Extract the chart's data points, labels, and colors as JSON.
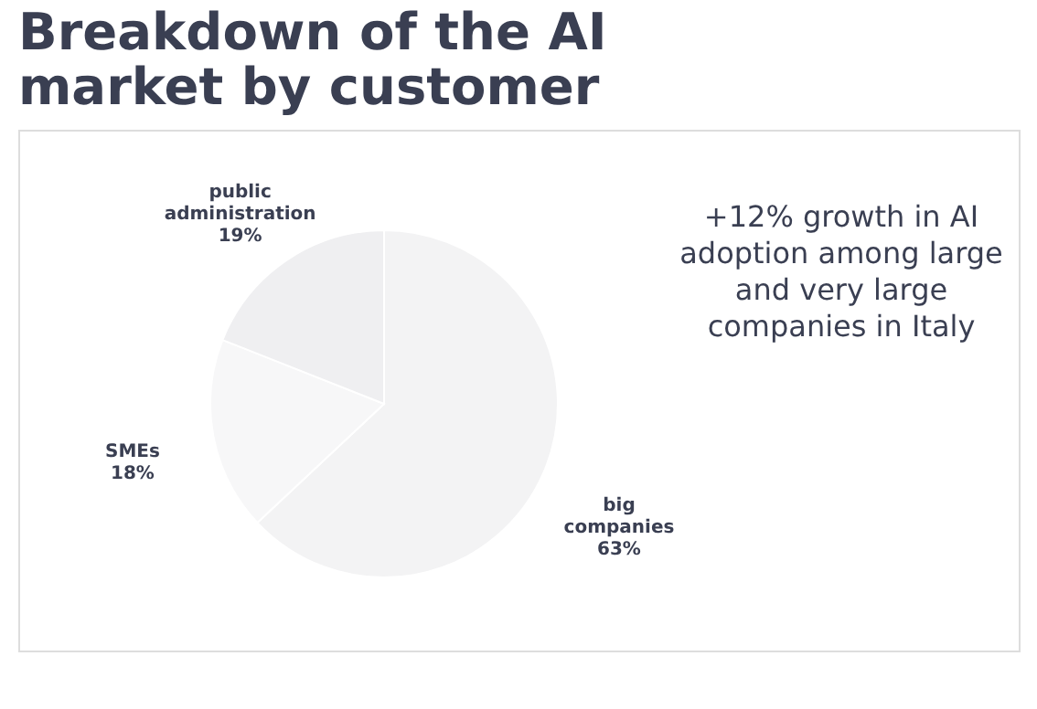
{
  "chart_data": {
    "type": "pie",
    "title": "Breakdown of the AI market by customer",
    "categories": [
      "big companies",
      "SMEs",
      "public administration"
    ],
    "values": [
      63,
      18,
      19
    ],
    "value_labels": [
      "63%",
      "18%",
      "19%"
    ],
    "colors": [
      "#f3f3f4",
      "#f7f7f8",
      "#efeff1"
    ],
    "annotations": [
      "+12% growth in AI adoption among large and very large companies in Italy"
    ],
    "legend": false
  }
}
